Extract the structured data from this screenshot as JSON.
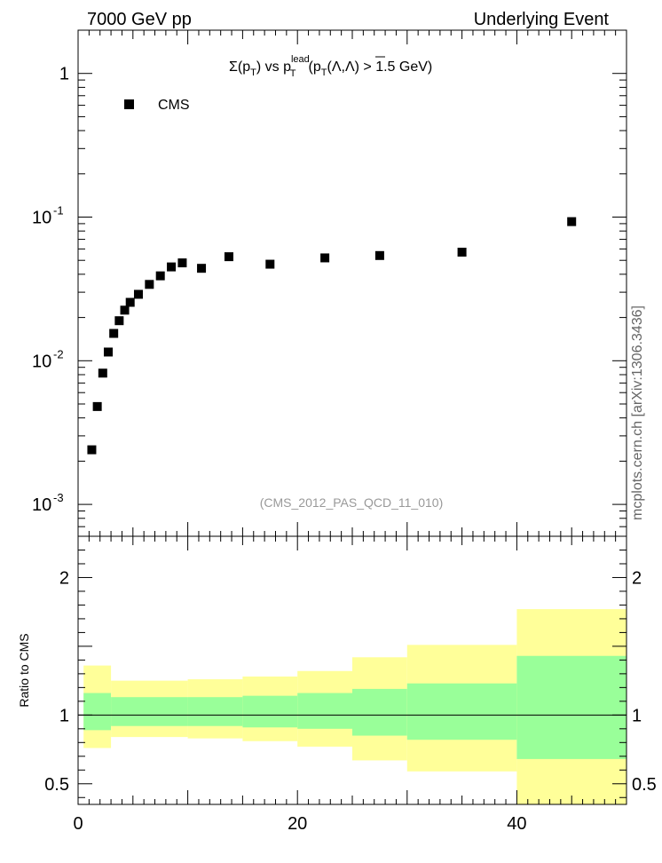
{
  "header": {
    "left": "7000 GeV pp",
    "right": "Underlying Event"
  },
  "plot_title": {
    "sigma": "Σ(p",
    "sub_t": "T",
    "vs": ") vs p",
    "sup_lead": "lead",
    "paren": "(p",
    "lambdas": "(Λ,Λ) > 1.5 GeV)"
  },
  "legend": {
    "label": "CMS"
  },
  "analysis_tag": "(CMS_2012_PAS_QCD_11_010)",
  "watermark": "mcplots.cern.ch [arXiv:1306.3436]",
  "colors": {
    "outer_band": "#ffff99",
    "inner_band": "#99ff99",
    "marker": "#000000",
    "tag_text": "#999999"
  },
  "chart_data": [
    {
      "type": "scatter",
      "title": "Σ(pT) vs pT lead (pT(Λ,Λ) > 1.5 GeV)",
      "xlabel": "",
      "ylabel": "",
      "y_scale": "log",
      "xlim": [
        0,
        50
      ],
      "ylim": [
        0.0006,
        2.0
      ],
      "legend_position": "top-left",
      "y_tick_labels": [
        "10^-3",
        "10^-2",
        "10^-1",
        "1"
      ],
      "series": [
        {
          "name": "CMS",
          "x": [
            1.25,
            1.75,
            2.25,
            2.75,
            3.25,
            3.75,
            4.25,
            4.75,
            5.5,
            6.5,
            7.5,
            8.5,
            9.5,
            11.25,
            13.75,
            17.5,
            22.5,
            27.5,
            35,
            45
          ],
          "y": [
            0.0024,
            0.0048,
            0.0082,
            0.0115,
            0.0155,
            0.019,
            0.0225,
            0.0255,
            0.029,
            0.034,
            0.039,
            0.045,
            0.048,
            0.044,
            0.053,
            0.047,
            0.052,
            0.054,
            0.057,
            0.093
          ]
        }
      ]
    },
    {
      "type": "area",
      "title": "",
      "xlabel": "",
      "ylabel": "Ratio to CMS",
      "xlim": [
        0,
        50
      ],
      "ylim": [
        0.35,
        2.3
      ],
      "x_tick_labels": [
        "0",
        "20",
        "40"
      ],
      "y_tick_labels": [
        "0.5",
        "1",
        "2"
      ],
      "reference_line": 1,
      "bins": [
        {
          "x_low": 0.5,
          "x_high": 3.0,
          "stat_low": 0.89,
          "stat_high": 1.16,
          "total_low": 0.76,
          "total_high": 1.36
        },
        {
          "x_low": 3.0,
          "x_high": 10.0,
          "stat_low": 0.92,
          "stat_high": 1.13,
          "total_low": 0.84,
          "total_high": 1.25
        },
        {
          "x_low": 10.0,
          "x_high": 15.0,
          "stat_low": 0.92,
          "stat_high": 1.13,
          "total_low": 0.83,
          "total_high": 1.26
        },
        {
          "x_low": 15.0,
          "x_high": 20.0,
          "stat_low": 0.91,
          "stat_high": 1.14,
          "total_low": 0.81,
          "total_high": 1.28
        },
        {
          "x_low": 20.0,
          "x_high": 25.0,
          "stat_low": 0.9,
          "stat_high": 1.16,
          "total_low": 0.77,
          "total_high": 1.32
        },
        {
          "x_low": 25.0,
          "x_high": 30.0,
          "stat_low": 0.85,
          "stat_high": 1.19,
          "total_low": 0.67,
          "total_high": 1.42
        },
        {
          "x_low": 30.0,
          "x_high": 40.0,
          "stat_low": 0.82,
          "stat_high": 1.23,
          "total_low": 0.59,
          "total_high": 1.51
        },
        {
          "x_low": 40.0,
          "x_high": 50.0,
          "stat_low": 0.68,
          "stat_high": 1.43,
          "total_low": 0.33,
          "total_high": 1.77
        }
      ]
    }
  ]
}
